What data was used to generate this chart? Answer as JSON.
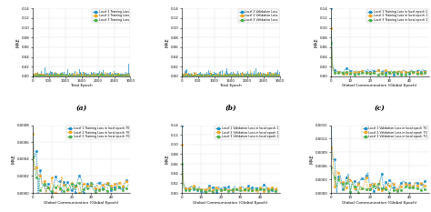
{
  "fig_width": 4.74,
  "fig_height": 2.33,
  "dpi": 100,
  "background": "#ffffff",
  "colors": {
    "local1": "#1e90c8",
    "local2": "#f5a623",
    "local3": "#4caf50"
  },
  "subplots": [
    {
      "label": "(a)",
      "xlabel": "Total Epoch",
      "ylabel": "MAE",
      "xlim": [
        0,
        3000
      ],
      "ylim": [
        0,
        0.14
      ],
      "yticks": [
        0,
        0.02,
        0.04,
        0.06,
        0.08,
        0.1,
        0.12,
        0.14
      ],
      "xticks": [
        0,
        500,
        1000,
        1500,
        2000,
        2500,
        3000
      ],
      "legend": [
        "Local 1 Training Loss",
        "Local 2 Training Loss",
        "Local 3 Training Loss"
      ],
      "type": "bar_spiky",
      "n_points": 3000,
      "spike_val": [
        0.14,
        0.06,
        0.005
      ],
      "base_val": [
        0.004,
        0.003,
        0.002
      ],
      "noise_scale": [
        0.003,
        0.002,
        0.001
      ]
    },
    {
      "label": "(b)",
      "xlabel": "Total Epoch",
      "ylabel": "MAE",
      "xlim": [
        0,
        3000
      ],
      "ylim": [
        0,
        0.14
      ],
      "yticks": [
        0,
        0.02,
        0.04,
        0.06,
        0.08,
        0.1,
        0.12,
        0.14
      ],
      "xticks": [
        0,
        500,
        1000,
        1500,
        2000,
        2500,
        3000
      ],
      "legend": [
        "Local 1 Validation Loss",
        "Local 2 Validation Loss",
        "Local 3 Validation Loss"
      ],
      "type": "bar_spiky",
      "n_points": 3000,
      "spike_val": [
        0.14,
        0.06,
        0.005
      ],
      "base_val": [
        0.004,
        0.003,
        0.002
      ],
      "noise_scale": [
        0.003,
        0.002,
        0.001
      ]
    },
    {
      "label": "(c)",
      "xlabel": "Global Communication (Global Epoch)",
      "ylabel": "MAE",
      "xlim": [
        0,
        50
      ],
      "ylim": [
        0,
        0.14
      ],
      "yticks": [
        0,
        0.02,
        0.04,
        0.06,
        0.08,
        0.1,
        0.12,
        0.14
      ],
      "xticks": [
        0,
        10,
        20,
        30,
        40
      ],
      "legend": [
        "Local 1 Training Loss in local epoch 1",
        "Local 2 Training Loss in local epoch 1",
        "Local 3 Training Loss in local epoch 1"
      ],
      "type": "line_fast_decay",
      "n_points": 50,
      "spike_val": [
        0.14,
        0.1,
        0.07
      ],
      "base_val": [
        0.01,
        0.008,
        0.006
      ],
      "noise_scale": [
        0.003,
        0.002,
        0.002
      ],
      "decay_rate": 2.5
    },
    {
      "label": "(d)",
      "xlabel": "Global Communication (Global Epoch)",
      "ylabel": "MAE",
      "xlim": [
        0,
        50
      ],
      "ylim": [
        0,
        0.0008
      ],
      "yticks": [
        0,
        0.0002,
        0.0004,
        0.0006,
        0.0008
      ],
      "xticks": [
        0,
        10,
        20,
        30,
        40
      ],
      "legend": [
        "Local 1 Training Loss in local epoch 70",
        "Local 2 Training Loss in local epoch 70",
        "Local 3 Training Loss in local epoch 70"
      ],
      "type": "line_noisy_decay",
      "n_points": 50,
      "spike_val": [
        0.00075,
        0.00055,
        0.00035
      ],
      "base_val": [
        0.0001,
        8e-05,
        6e-05
      ],
      "noise_scale": [
        0.00012,
        0.0001,
        8e-05
      ],
      "decay_rate": 0.5
    },
    {
      "label": "(e)",
      "xlabel": "Global Communication (Global Epoch)",
      "ylabel": "MAE",
      "xlim": [
        0,
        50
      ],
      "ylim": [
        0,
        0.14
      ],
      "yticks": [
        0,
        0.02,
        0.04,
        0.06,
        0.08,
        0.1,
        0.12,
        0.14
      ],
      "xticks": [
        0,
        10,
        20,
        30,
        40
      ],
      "legend": [
        "Local 1 Validation Loss in local epoch 1",
        "Local 2 Validation Loss in local epoch 1",
        "Local 3 Validation Loss in local epoch 1"
      ],
      "type": "line_fast_decay",
      "n_points": 50,
      "spike_val": [
        0.14,
        0.1,
        0.06
      ],
      "base_val": [
        0.01,
        0.008,
        0.006
      ],
      "noise_scale": [
        0.004,
        0.003,
        0.002
      ],
      "decay_rate": 2.5
    },
    {
      "label": "(f)",
      "xlabel": "Global Communication (Global Epoch)",
      "ylabel": "MAE",
      "xlim": [
        0,
        50
      ],
      "ylim": [
        0,
        0.0015
      ],
      "yticks": [
        0,
        0.0003,
        0.0006,
        0.0009,
        0.0012,
        0.0015
      ],
      "xticks": [
        0,
        10,
        20,
        30,
        40
      ],
      "legend": [
        "Local 1 Validation Loss in local epoch 70",
        "Local 2 Validation Loss in local epoch 70",
        "Local 3 Validation Loss in local epoch 70"
      ],
      "type": "line_noisy_decay",
      "n_points": 50,
      "spike_val": [
        0.0014,
        0.001,
        0.0006
      ],
      "base_val": [
        0.0002,
        0.00015,
        0.0001
      ],
      "noise_scale": [
        0.0002,
        0.00015,
        0.0001
      ],
      "decay_rate": 0.5
    }
  ]
}
